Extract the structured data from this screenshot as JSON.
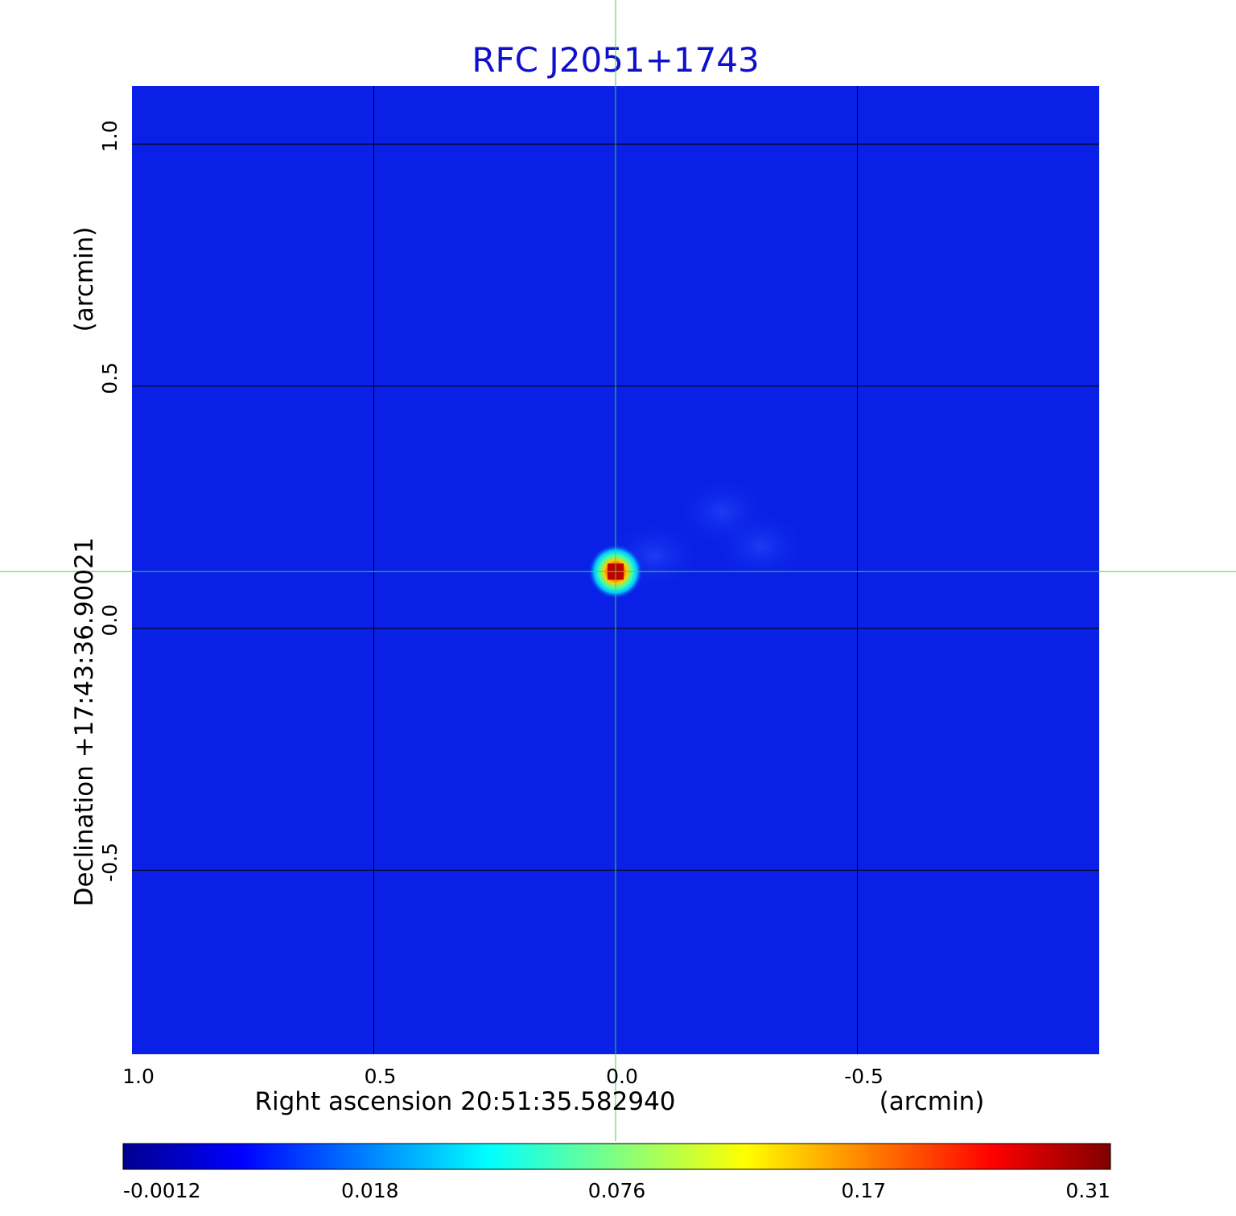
{
  "chart_data": {
    "type": "heatmap",
    "title": "RFC J2051+1743",
    "xlabel": "Right ascension  20:51:35.582940",
    "xunit": "(arcmin)",
    "ylabel": "Declination  +17:43:36.90021",
    "yunit": "(arcmin)",
    "x_ticks": [
      "1.0",
      "0.5",
      "0.0",
      "-0.5"
    ],
    "y_ticks": [
      "1.0",
      "0.5",
      "0.0",
      "-0.5"
    ],
    "xlim": [
      1.0,
      -1.0
    ],
    "ylim": [
      -0.88,
      1.12
    ],
    "grid": true,
    "crosshair": {
      "x": 0.0,
      "y": 0.117
    },
    "colormap": "jet",
    "colorbar_ticks": [
      "-0.0012",
      "0.018",
      "0.076",
      "0.17",
      "0.31"
    ],
    "colorbar_range": [
      -0.0012,
      0.31
    ],
    "peak": {
      "x": 0.0,
      "y": 0.117,
      "value": 0.31
    },
    "background_value": 0.0,
    "extended_feature": {
      "description_points": [
        {
          "x": -0.08,
          "y": 0.15,
          "value": 0.012
        },
        {
          "x": -0.22,
          "y": 0.24,
          "value": 0.014
        },
        {
          "x": -0.3,
          "y": 0.17,
          "value": 0.01
        }
      ]
    }
  },
  "colors": {
    "title": "#1010cc",
    "crosshair": "#33dd33",
    "grid": "#000000",
    "background": "#0a20e6"
  }
}
